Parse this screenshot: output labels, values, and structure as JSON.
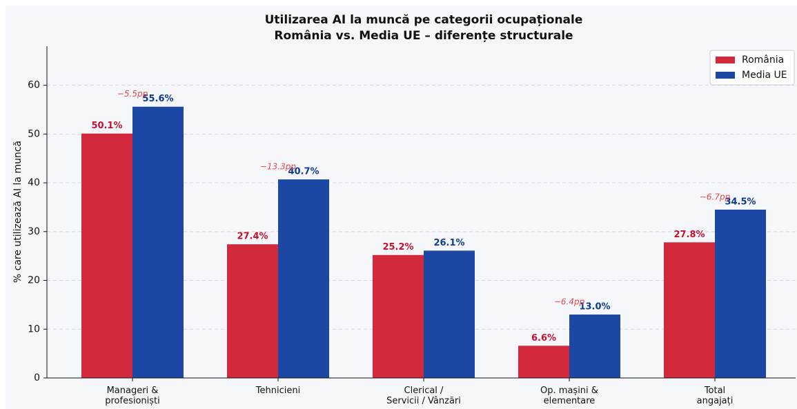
{
  "chart_data": {
    "type": "bar",
    "title": "Utilizarea AI la muncă pe categorii ocupaționale",
    "subtitle": "România vs. Media UE – diferențe structurale",
    "y_label": "% care utilizează AI la muncă",
    "categories": [
      "Manageri &\nprofesioniști",
      "Tehnicieni",
      "Clerical /\nServicii / Vânzări",
      "Op. mașini &\nelementare",
      "Total\nangajați"
    ],
    "series": [
      {
        "name": "România",
        "color": "#d22a3c",
        "values": [
          50.1,
          27.4,
          25.2,
          6.6,
          27.8
        ],
        "value_labels": [
          "50.1%",
          "27.4%",
          "25.2%",
          "6.6%",
          "27.8%"
        ],
        "label_color": "#c8102e"
      },
      {
        "name": "Media UE",
        "color": "#1c47a3",
        "values": [
          55.6,
          40.7,
          26.1,
          13.0,
          34.5
        ],
        "value_labels": [
          "55.6%",
          "40.7%",
          "26.1%",
          "13.0%",
          "34.5%"
        ],
        "label_color": "#0d3a96"
      }
    ],
    "diff_labels": [
      "−5.5pp",
      "−13.3pp",
      null,
      "−6.4pp",
      "−6.7pp"
    ],
    "ylim": [
      0,
      68
    ],
    "yticks": [
      0,
      10,
      20,
      30,
      40,
      50,
      60
    ],
    "grid": true,
    "legend": "upper right"
  }
}
